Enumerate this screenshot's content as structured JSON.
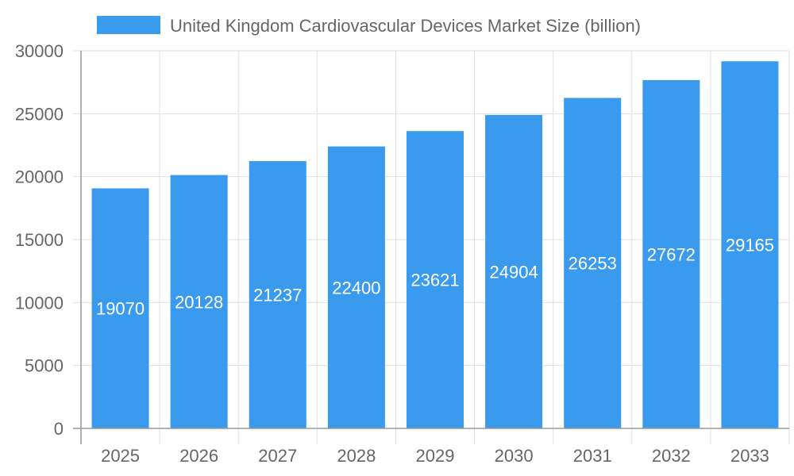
{
  "chart_data": {
    "type": "bar",
    "categories": [
      "2025",
      "2026",
      "2027",
      "2028",
      "2029",
      "2030",
      "2031",
      "2032",
      "2033"
    ],
    "series": [
      {
        "name": "United Kingdom Cardiovascular Devices Market Size (billion)",
        "values": [
          19070,
          20128,
          21237,
          22400,
          23621,
          24904,
          26253,
          27672,
          29165
        ]
      }
    ],
    "ylim": [
      0,
      30000
    ],
    "yticks": [
      0,
      5000,
      10000,
      15000,
      20000,
      25000,
      30000
    ],
    "grid": true,
    "legend": "top",
    "data_labels": true,
    "colors": {
      "bar": "#3a9aee",
      "grid": "#e0e0e0",
      "axis": "#999999",
      "text": "#666666"
    }
  }
}
